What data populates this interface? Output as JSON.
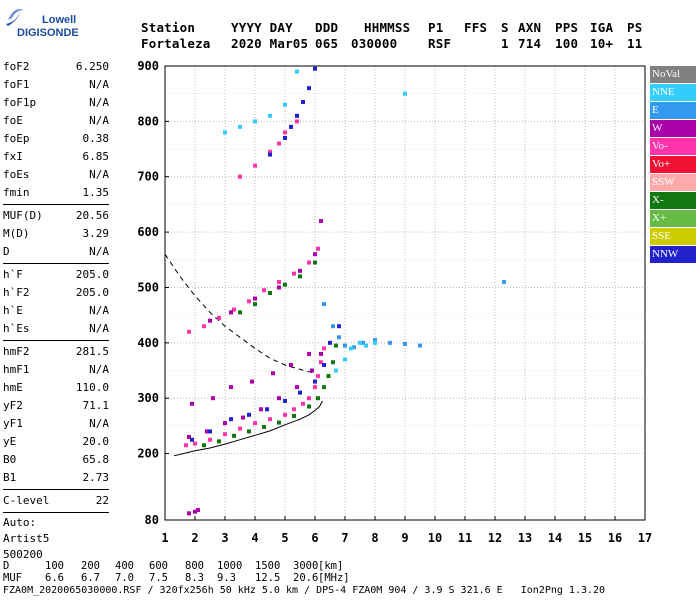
{
  "logo": {
    "line1": "Lowell",
    "line2": "DIGISONDE"
  },
  "header": {
    "row1": [
      "Station",
      "YYYY DAY",
      "DDD",
      "HHMMSS",
      "P1",
      "FFS",
      "S",
      "AXN",
      "PPS",
      "IGA",
      "PS"
    ],
    "row2": [
      "Fortaleza",
      "2020 Mar05",
      "065",
      "030000",
      "RSF",
      "1",
      "714",
      "100",
      "10+",
      "11"
    ]
  },
  "params": {
    "group1": [
      {
        "k": "foF2",
        "v": "6.250"
      },
      {
        "k": "foF1",
        "v": "N/A"
      },
      {
        "k": "foF1p",
        "v": "N/A"
      },
      {
        "k": "foE",
        "v": "N/A"
      },
      {
        "k": "foEp",
        "v": "0.38"
      },
      {
        "k": "fxI",
        "v": "6.85"
      },
      {
        "k": "foEs",
        "v": "N/A"
      },
      {
        "k": "fmin",
        "v": "1.35"
      }
    ],
    "group2": [
      {
        "k": "MUF(D)",
        "v": "20.56"
      },
      {
        "k": "M(D)",
        "v": "3.29"
      },
      {
        "k": "D",
        "v": "N/A"
      }
    ],
    "group3": [
      {
        "k": "h`F",
        "v": "205.0"
      },
      {
        "k": "h`F2",
        "v": "205.0"
      },
      {
        "k": "h`E",
        "v": "N/A"
      },
      {
        "k": "h`Es",
        "v": "N/A"
      }
    ],
    "group4": [
      {
        "k": "hmF2",
        "v": "281.5"
      },
      {
        "k": "hmF1",
        "v": "N/A"
      },
      {
        "k": "hmE",
        "v": "110.0"
      },
      {
        "k": "yF2",
        "v": "71.1"
      },
      {
        "k": "yF1",
        "v": "N/A"
      },
      {
        "k": "yE",
        "v": "20.0"
      },
      {
        "k": "B0",
        "v": "65.8"
      },
      {
        "k": "B1",
        "v": "2.73"
      }
    ],
    "group5": [
      {
        "k": "C-level",
        "v": "22"
      }
    ],
    "auto": [
      "Auto:",
      "Artist5",
      "500200"
    ]
  },
  "legend": [
    {
      "label": "NoVal",
      "color": "#808080"
    },
    {
      "label": "NNE",
      "color": "#33ccff"
    },
    {
      "label": "E",
      "color": "#3399ee"
    },
    {
      "label": "W",
      "color": "#aa00aa"
    },
    {
      "label": "Vo-",
      "color": "#ff33aa"
    },
    {
      "label": "Vo+",
      "color": "#ee1133"
    },
    {
      "label": "SSW",
      "color": "#ffaaaa"
    },
    {
      "label": "X-",
      "color": "#117711"
    },
    {
      "label": "X+",
      "color": "#66bb44"
    },
    {
      "label": "SSE",
      "color": "#cccc00"
    },
    {
      "label": "NNW",
      "color": "#2222cc"
    }
  ],
  "footer": {
    "dist_label": "D",
    "dist_values": [
      "100",
      "200",
      "400",
      "600",
      "800",
      "1000",
      "1500",
      "3000"
    ],
    "dist_unit": "[km]",
    "muf_label": "MUF",
    "muf_values": [
      "6.6",
      "6.7",
      "7.0",
      "7.5",
      "8.3",
      "9.3",
      "12.5",
      "20.6"
    ],
    "muf_unit": "[MHz]",
    "info": "FZA0M_2020065030000.RSF / 320fx256h 50 kHz 5.0 km / DPS-4 FZA0M 904 / 3.9 S 321.6 E   Ion2Png 1.3.20"
  },
  "chart_data": {
    "type": "scatter",
    "title": "",
    "xlabel": "",
    "ylabel": "",
    "xlim": [
      1,
      17
    ],
    "ylim": [
      80,
      900
    ],
    "xticks": [
      "1",
      "2",
      "3",
      "4",
      "5",
      "6",
      "7",
      "8",
      "9",
      "10",
      "11",
      "12",
      "13",
      "14",
      "15",
      "16",
      "17"
    ],
    "yticks": [
      "80",
      "200",
      "300",
      "400",
      "500",
      "600",
      "700",
      "800",
      "900"
    ],
    "grid": true,
    "series": [
      {
        "name": "Vo- trace",
        "color": "#ff33aa",
        "x": [
          1.7,
          2.0,
          2.5,
          3.0,
          3.5,
          4.0,
          4.5,
          5.0,
          5.3,
          5.6,
          5.8,
          6.0,
          6.1,
          6.2,
          6.3
        ],
        "y": [
          215,
          218,
          225,
          235,
          245,
          255,
          262,
          270,
          280,
          290,
          300,
          320,
          340,
          365,
          390
        ]
      },
      {
        "name": "X- trace",
        "color": "#117711",
        "x": [
          2.3,
          2.8,
          3.3,
          3.8,
          4.3,
          4.8,
          5.3,
          5.8,
          6.1,
          6.3,
          6.45,
          6.6,
          6.7
        ],
        "y": [
          215,
          222,
          232,
          240,
          248,
          256,
          268,
          285,
          300,
          320,
          340,
          365,
          395
        ]
      },
      {
        "name": "W spread",
        "color": "#aa00aa",
        "x": [
          1.8,
          2.4,
          3.0,
          3.6,
          4.2,
          4.8,
          5.4,
          5.9,
          6.2,
          1.9,
          2.6,
          3.2,
          3.9,
          4.6,
          5.2,
          5.8
        ],
        "y": [
          230,
          240,
          255,
          265,
          280,
          300,
          320,
          350,
          380,
          290,
          300,
          320,
          330,
          345,
          360,
          380
        ]
      },
      {
        "name": "NNW spread",
        "color": "#2222cc",
        "x": [
          1.9,
          2.5,
          3.2,
          3.8,
          4.4,
          5.0,
          5.5,
          6.0,
          6.3,
          6.5,
          6.8
        ],
        "y": [
          225,
          240,
          262,
          270,
          280,
          295,
          310,
          330,
          360,
          400,
          430
        ]
      },
      {
        "name": "E echoes",
        "color": "#3399ee",
        "x": [
          6.3,
          6.6,
          6.8,
          7.0,
          7.3,
          7.6,
          8.0,
          8.5,
          9.0,
          9.5,
          12.3
        ],
        "y": [
          470,
          430,
          410,
          395,
          392,
          400,
          405,
          400,
          398,
          395,
          510
        ]
      },
      {
        "name": "NNE echoes",
        "color": "#33ccff",
        "x": [
          6.7,
          7.0,
          7.2,
          7.5,
          7.7,
          8.0,
          9.0
        ],
        "y": [
          350,
          370,
          390,
          400,
          395,
          400,
          850
        ]
      },
      {
        "name": "2F Vo-",
        "color": "#ff33aa",
        "x": [
          1.8,
          2.3,
          2.8,
          3.3,
          3.8,
          4.3,
          4.8,
          5.3,
          5.8,
          6.1
        ],
        "y": [
          420,
          430,
          445,
          460,
          475,
          495,
          510,
          525,
          545,
          570
        ]
      },
      {
        "name": "2F X-",
        "color": "#117711",
        "x": [
          3.5,
          4.0,
          4.5,
          5.0,
          5.5,
          6.0
        ],
        "y": [
          455,
          470,
          490,
          505,
          520,
          545
        ]
      },
      {
        "name": "2F W",
        "color": "#aa00aa",
        "x": [
          2.5,
          3.2,
          4.0,
          4.8,
          5.5,
          6.0,
          6.2
        ],
        "y": [
          440,
          455,
          480,
          500,
          530,
          560,
          620
        ]
      },
      {
        "name": "3F Vo-",
        "color": "#ff33aa",
        "x": [
          3.5,
          4.0,
          4.5,
          4.8,
          5.0,
          5.2,
          5.4
        ],
        "y": [
          700,
          720,
          745,
          760,
          780,
          790,
          800
        ]
      },
      {
        "name": "3F NNW",
        "color": "#2222cc",
        "x": [
          4.5,
          5.0,
          5.2,
          5.4,
          5.6,
          5.8,
          6.0
        ],
        "y": [
          740,
          770,
          790,
          810,
          835,
          860,
          895
        ]
      },
      {
        "name": "3F NNE",
        "color": "#33ccff",
        "x": [
          3.0,
          3.5,
          4.0,
          4.5,
          5.0,
          5.4
        ],
        "y": [
          780,
          790,
          800,
          810,
          830,
          890
        ]
      },
      {
        "name": "low echoes",
        "color": "#aa00aa",
        "x": [
          1.8,
          2.0,
          2.1
        ],
        "y": [
          92,
          95,
          98
        ]
      }
    ],
    "curves": [
      {
        "name": "profile",
        "style": "solid",
        "color": "#000000",
        "x": [
          1.3,
          2.0,
          2.5,
          3.0,
          3.5,
          4.0,
          4.5,
          5.0,
          5.5,
          5.8,
          6.0,
          6.15,
          6.25
        ],
        "y": [
          196,
          205,
          210,
          217,
          225,
          233,
          241,
          252,
          262,
          270,
          278,
          285,
          295
        ]
      },
      {
        "name": "muf-curve",
        "style": "dashed",
        "color": "#000000",
        "x": [
          1.0,
          1.5,
          2.0,
          2.5,
          3.0,
          3.5,
          4.0,
          4.5,
          5.0,
          5.5,
          6.0
        ],
        "y": [
          560,
          520,
          485,
          455,
          430,
          410,
          390,
          372,
          360,
          352,
          345
        ]
      }
    ]
  }
}
